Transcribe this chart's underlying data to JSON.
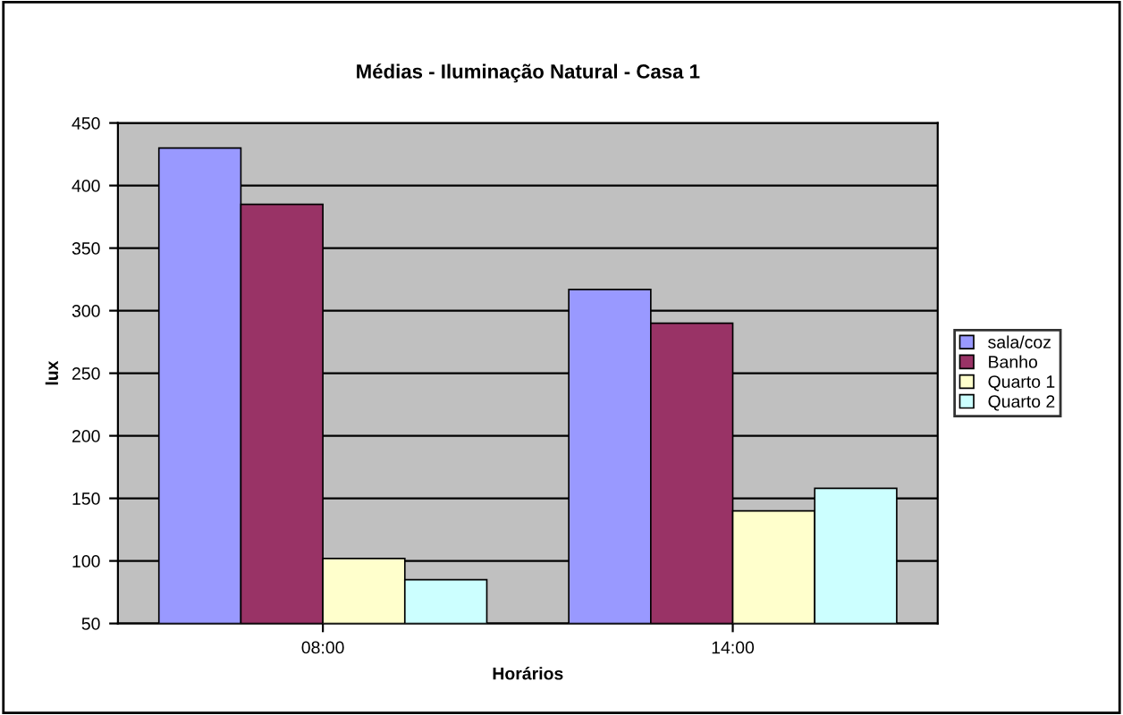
{
  "chart_data": {
    "type": "bar",
    "title": "Médias - Iluminação Natural - Casa 1",
    "xlabel": "Horários",
    "ylabel": "lux",
    "categories": [
      "08:00",
      "14:00"
    ],
    "series": [
      {
        "name": "sala/coz",
        "color": "#9999ff",
        "values": [
          430,
          317
        ]
      },
      {
        "name": "Banho",
        "color": "#993366",
        "values": [
          385,
          290
        ]
      },
      {
        "name": "Quarto 1",
        "color": "#ffffcc",
        "values": [
          102,
          140
        ]
      },
      {
        "name": "Quarto 2",
        "color": "#ccffff",
        "values": [
          85,
          158
        ]
      }
    ],
    "ylim": [
      50,
      450
    ],
    "yticks": [
      50,
      100,
      150,
      200,
      250,
      300,
      350,
      400,
      450
    ],
    "grid": "y",
    "legend": "right"
  }
}
